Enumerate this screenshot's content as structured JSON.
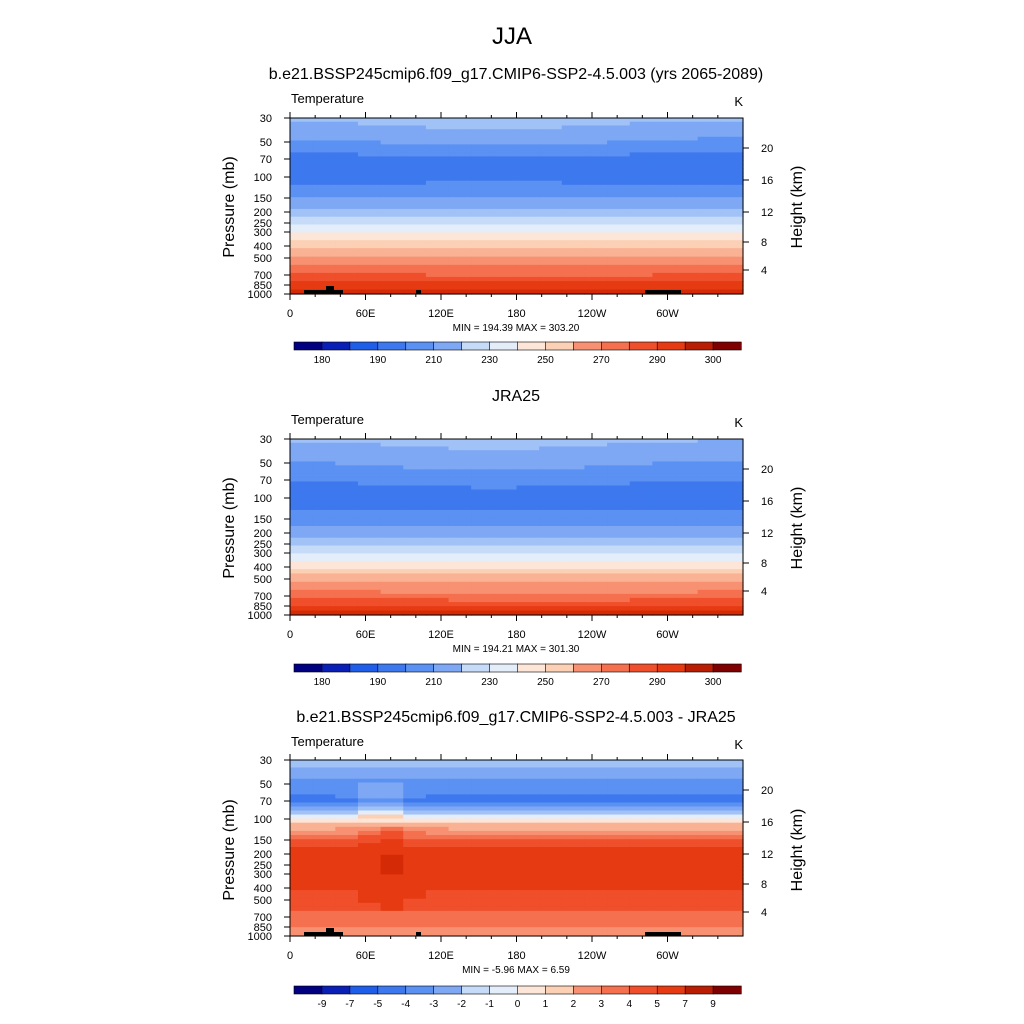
{
  "figure": {
    "suptitle": "JJA"
  },
  "colors": {
    "abs_levels": [
      "#000080",
      "#0a1fb5",
      "#1040d0",
      "#1f5ee8",
      "#3d78ee",
      "#5a91f2",
      "#7ea8f4",
      "#a1c2f6",
      "#c6dbf8",
      "#e4eefb",
      "#fde6d8",
      "#fbd0b5",
      "#f9b293",
      "#f79171",
      "#f4704e",
      "#f04f2b",
      "#e63a12",
      "#d52a06",
      "#b91d04",
      "#7f0000"
    ],
    "diff_levels": [
      "#000080",
      "#0a1fb5",
      "#1040d0",
      "#1f5ee8",
      "#3d78ee",
      "#5a91f2",
      "#7ea8f4",
      "#a1c2f6",
      "#c6dbf8",
      "#e4eefb",
      "#fde6d8",
      "#fbd0b5",
      "#f9b293",
      "#f79171",
      "#f4704e",
      "#f04f2b",
      "#e63a12",
      "#d52a06",
      "#b91d04",
      "#7f0000"
    ],
    "terrain": "#000000"
  },
  "chart_data": [
    {
      "type": "heatmap",
      "title": "b.e21.BSSP245cmip6.f09_g17.CMIP6-SSP2-4.5.003 (yrs 2065-2089)",
      "left_label": "Temperature",
      "units": "K",
      "ylabel": "Pressure (mb)",
      "ylabel_right": "Height (km)",
      "x_ticks": [
        "0",
        "60E",
        "120E",
        "180",
        "120W",
        "60W"
      ],
      "y_ticks": [
        "30",
        "50",
        "70",
        "100",
        "150",
        "200",
        "250",
        "300",
        "400",
        "500",
        "700",
        "850",
        "1000"
      ],
      "height_ticks": [
        "20",
        "16",
        "12",
        "8",
        "4"
      ],
      "stats": "MIN = 194.39  MAX = 303.20",
      "colorbar_labels": [
        "180",
        "190",
        "210",
        "230",
        "250",
        "270",
        "290",
        "300"
      ],
      "profile_name": "model",
      "profile": [
        {
          "p": 30,
          "v": 222
        },
        {
          "p": 50,
          "v": 212
        },
        {
          "p": 70,
          "v": 203
        },
        {
          "p": 100,
          "v": 201
        },
        {
          "p": 150,
          "v": 213
        },
        {
          "p": 200,
          "v": 222
        },
        {
          "p": 250,
          "v": 230
        },
        {
          "p": 300,
          "v": 241
        },
        {
          "p": 400,
          "v": 253
        },
        {
          "p": 500,
          "v": 262
        },
        {
          "p": 700,
          "v": 276
        },
        {
          "p": 850,
          "v": 286
        },
        {
          "p": 1000,
          "v": 297
        }
      ]
    },
    {
      "type": "heatmap",
      "title": "JRA25",
      "left_label": "Temperature",
      "units": "K",
      "ylabel": "Pressure (mb)",
      "ylabel_right": "Height (km)",
      "x_ticks": [
        "0",
        "60E",
        "120E",
        "180",
        "120W",
        "60W"
      ],
      "y_ticks": [
        "30",
        "50",
        "70",
        "100",
        "150",
        "200",
        "250",
        "300",
        "400",
        "500",
        "700",
        "850",
        "1000"
      ],
      "height_ticks": [
        "20",
        "16",
        "12",
        "8",
        "4"
      ],
      "stats": "MIN = 194.21  MAX = 301.30",
      "colorbar_labels": [
        "180",
        "190",
        "210",
        "230",
        "250",
        "270",
        "290",
        "300"
      ],
      "profile_name": "obs",
      "profile": [
        {
          "p": 30,
          "v": 221
        },
        {
          "p": 50,
          "v": 213
        },
        {
          "p": 70,
          "v": 207
        },
        {
          "p": 100,
          "v": 199
        },
        {
          "p": 150,
          "v": 208
        },
        {
          "p": 200,
          "v": 216
        },
        {
          "p": 250,
          "v": 224
        },
        {
          "p": 300,
          "v": 234
        },
        {
          "p": 400,
          "v": 247
        },
        {
          "p": 500,
          "v": 258
        },
        {
          "p": 700,
          "v": 272
        },
        {
          "p": 850,
          "v": 283
        },
        {
          "p": 1000,
          "v": 294
        }
      ]
    },
    {
      "type": "heatmap",
      "title": "b.e21.BSSP245cmip6.f09_g17.CMIP6-SSP2-4.5.003 - JRA25",
      "left_label": "Temperature",
      "units": "K",
      "ylabel": "Pressure (mb)",
      "ylabel_right": "Height (km)",
      "x_ticks": [
        "0",
        "60E",
        "120E",
        "180",
        "120W",
        "60W"
      ],
      "y_ticks": [
        "30",
        "50",
        "70",
        "100",
        "150",
        "200",
        "250",
        "300",
        "400",
        "500",
        "700",
        "850",
        "1000"
      ],
      "height_ticks": [
        "20",
        "16",
        "12",
        "8",
        "4"
      ],
      "stats": "MIN =  -5.96  MAX =   6.59",
      "colorbar_labels": [
        "-9",
        "-7",
        "-5",
        "-4",
        "-3",
        "-2",
        "-1",
        "0",
        "1",
        "2",
        "3",
        "4",
        "5",
        "7",
        "9"
      ],
      "profile_name": "diff",
      "profile": [
        {
          "p": 30,
          "v": -1.5
        },
        {
          "p": 50,
          "v": -3.5
        },
        {
          "p": 70,
          "v": -4.5
        },
        {
          "p": 100,
          "v": 0.2
        },
        {
          "p": 150,
          "v": 4.0
        },
        {
          "p": 200,
          "v": 5.6
        },
        {
          "p": 250,
          "v": 5.8
        },
        {
          "p": 300,
          "v": 5.6
        },
        {
          "p": 400,
          "v": 5.0
        },
        {
          "p": 500,
          "v": 4.6
        },
        {
          "p": 700,
          "v": 3.8
        },
        {
          "p": 850,
          "v": 3.0
        },
        {
          "p": 1000,
          "v": 2.5
        }
      ]
    }
  ]
}
